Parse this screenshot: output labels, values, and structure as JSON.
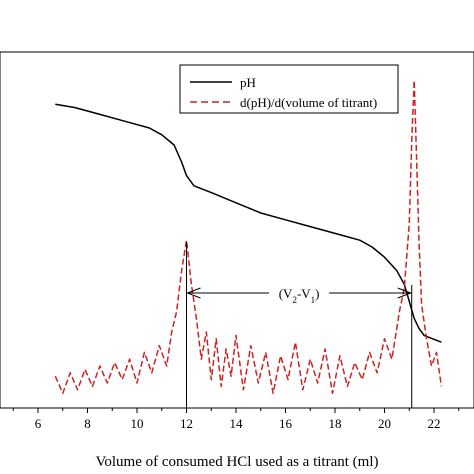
{
  "chart_data": {
    "type": "line",
    "xlabel": "Volume of consumed HCl used as a titrant (ml)",
    "ylabel": "",
    "xlim": [
      5,
      23
    ],
    "x_ticks": [
      6,
      8,
      10,
      12,
      14,
      16,
      18,
      20,
      22
    ],
    "grid": false,
    "legend_position": "top-right",
    "series": [
      {
        "name": "pH",
        "color": "#000000",
        "style": "solid",
        "points": [
          [
            6.7,
            0.87
          ],
          [
            7.5,
            0.86
          ],
          [
            8.5,
            0.84
          ],
          [
            9.5,
            0.82
          ],
          [
            10.5,
            0.8
          ],
          [
            11.0,
            0.78
          ],
          [
            11.5,
            0.75
          ],
          [
            11.8,
            0.7
          ],
          [
            12.0,
            0.66
          ],
          [
            12.3,
            0.63
          ],
          [
            13,
            0.61
          ],
          [
            14,
            0.58
          ],
          [
            15,
            0.55
          ],
          [
            16,
            0.53
          ],
          [
            17,
            0.51
          ],
          [
            18,
            0.49
          ],
          [
            19,
            0.47
          ],
          [
            19.5,
            0.45
          ],
          [
            20,
            0.42
          ],
          [
            20.5,
            0.38
          ],
          [
            20.8,
            0.34
          ],
          [
            21.0,
            0.29
          ],
          [
            21.2,
            0.24
          ],
          [
            21.4,
            0.21
          ],
          [
            21.6,
            0.19
          ],
          [
            22.3,
            0.17
          ]
        ]
      },
      {
        "name": "d(pH)/d(volume of titrant)",
        "color": "#cc2222",
        "style": "dashed",
        "points": [
          [
            6.7,
            0.07
          ],
          [
            7.0,
            0.02
          ],
          [
            7.3,
            0.08
          ],
          [
            7.6,
            0.03
          ],
          [
            7.9,
            0.09
          ],
          [
            8.2,
            0.04
          ],
          [
            8.5,
            0.1
          ],
          [
            8.8,
            0.05
          ],
          [
            9.1,
            0.11
          ],
          [
            9.4,
            0.06
          ],
          [
            9.7,
            0.12
          ],
          [
            10.0,
            0.05
          ],
          [
            10.3,
            0.14
          ],
          [
            10.6,
            0.08
          ],
          [
            10.9,
            0.16
          ],
          [
            11.2,
            0.1
          ],
          [
            11.4,
            0.2
          ],
          [
            11.6,
            0.26
          ],
          [
            11.8,
            0.38
          ],
          [
            12.0,
            0.47
          ],
          [
            12.2,
            0.34
          ],
          [
            12.4,
            0.24
          ],
          [
            12.6,
            0.12
          ],
          [
            12.8,
            0.2
          ],
          [
            13.0,
            0.06
          ],
          [
            13.2,
            0.18
          ],
          [
            13.4,
            0.04
          ],
          [
            13.6,
            0.15
          ],
          [
            13.8,
            0.07
          ],
          [
            14.0,
            0.19
          ],
          [
            14.3,
            0.03
          ],
          [
            14.6,
            0.16
          ],
          [
            14.9,
            0.05
          ],
          [
            15.2,
            0.14
          ],
          [
            15.5,
            0.02
          ],
          [
            15.8,
            0.13
          ],
          [
            16.1,
            0.06
          ],
          [
            16.4,
            0.17
          ],
          [
            16.7,
            0.03
          ],
          [
            17.0,
            0.12
          ],
          [
            17.3,
            0.05
          ],
          [
            17.6,
            0.15
          ],
          [
            17.9,
            0.02
          ],
          [
            18.2,
            0.13
          ],
          [
            18.5,
            0.04
          ],
          [
            18.8,
            0.11
          ],
          [
            19.1,
            0.06
          ],
          [
            19.4,
            0.14
          ],
          [
            19.7,
            0.08
          ],
          [
            20.0,
            0.18
          ],
          [
            20.3,
            0.12
          ],
          [
            20.6,
            0.26
          ],
          [
            20.8,
            0.33
          ],
          [
            21.0,
            0.52
          ],
          [
            21.1,
            0.76
          ],
          [
            21.2,
            0.94
          ],
          [
            21.3,
            0.7
          ],
          [
            21.4,
            0.46
          ],
          [
            21.5,
            0.28
          ],
          [
            21.7,
            0.18
          ],
          [
            21.9,
            0.1
          ],
          [
            22.1,
            0.14
          ],
          [
            22.3,
            0.04
          ]
        ]
      }
    ],
    "annotation": {
      "text_main": "(V",
      "sub1": "2",
      "mid": "-V",
      "sub2": "1",
      "end": ")",
      "x_start": 12.0,
      "x_end": 21.1
    }
  }
}
